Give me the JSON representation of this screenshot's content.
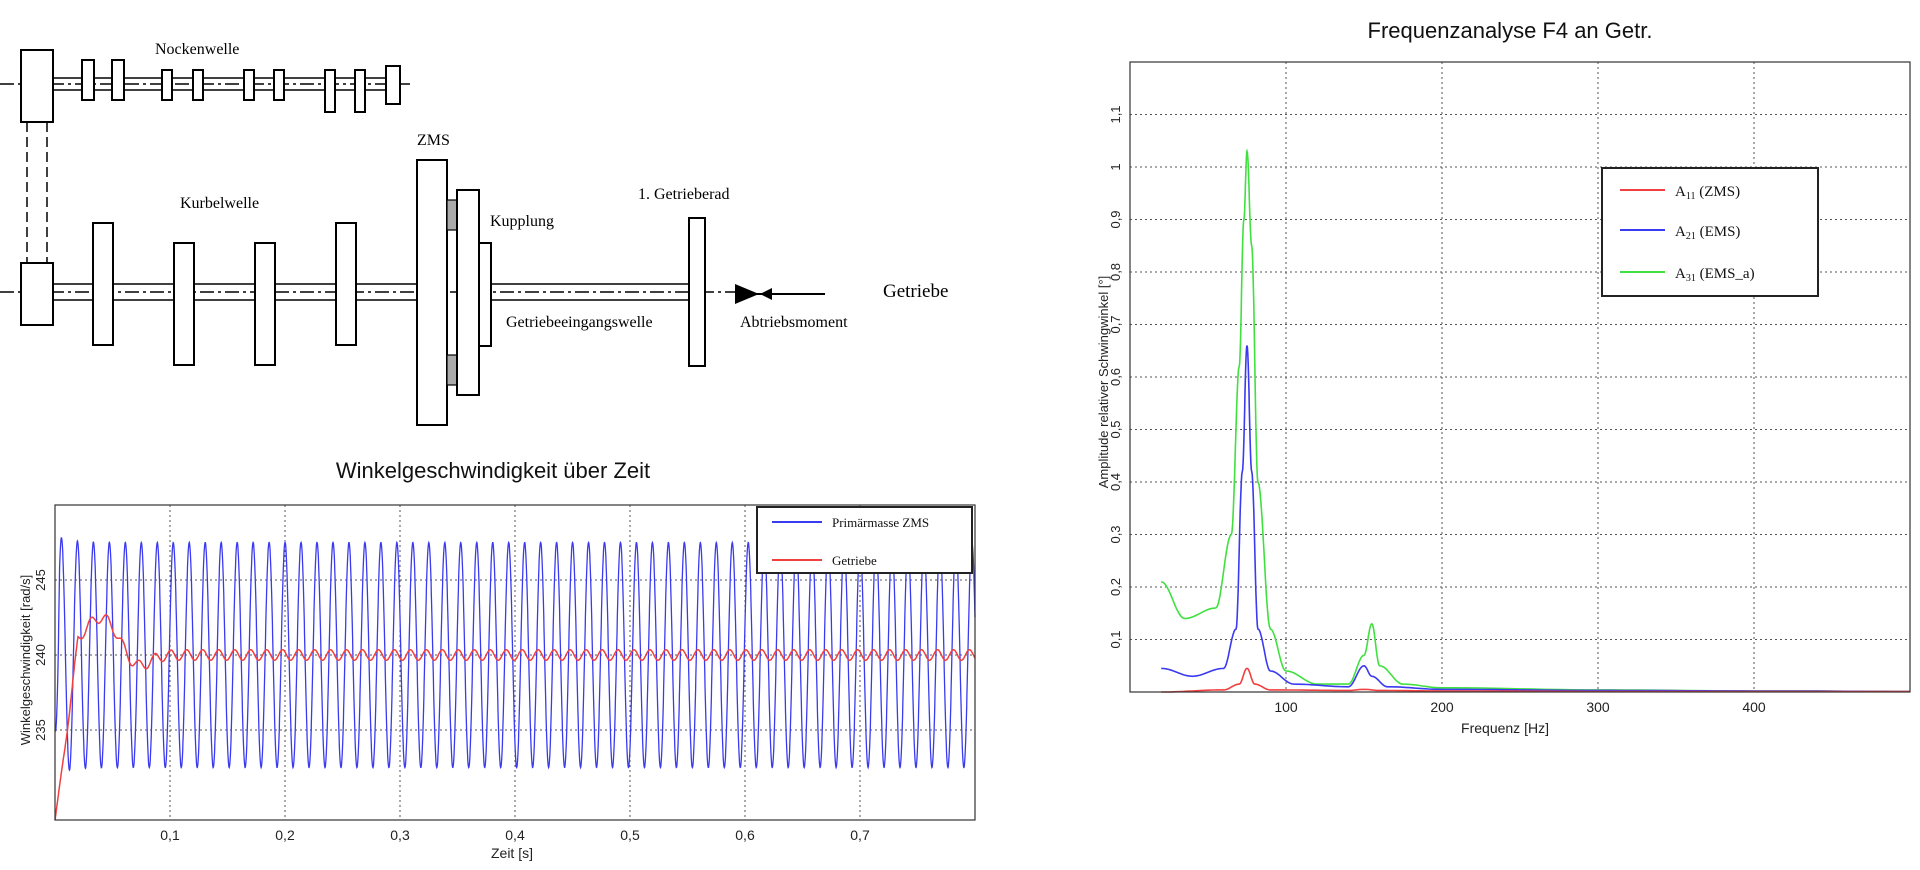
{
  "diagram": {
    "labels": {
      "nockenwelle": "Nockenwelle",
      "kurbelwelle": "Kurbelwelle",
      "zms": "ZMS",
      "kupplung": "Kupplung",
      "getrieberad": "1. Getrieberad",
      "getriebe": "Getriebe",
      "getriebeeingangswelle": "Getriebeeingangswelle",
      "abtriebsmoment": "Abtriebsmoment"
    }
  },
  "chart_data": [
    {
      "type": "line",
      "title": "Winkelgeschwindigkeit über Zeit",
      "xlabel": "Zeit [s]",
      "ylabel": "Winkelgeschwindigkeit [rad/s]",
      "xlim": [
        0,
        0.8
      ],
      "ylim": [
        229,
        250
      ],
      "xticks": [
        0.1,
        0.2,
        0.3,
        0.4,
        0.5,
        0.6,
        0.7
      ],
      "xtick_labels": [
        "0,1",
        "0,2",
        "0,3",
        "0,4",
        "0,5",
        "0,6",
        "0,7"
      ],
      "yticks": [
        235,
        240,
        245
      ],
      "ytick_labels": [
        "235",
        "240",
        "245"
      ],
      "grid": true,
      "legend_position": "top-right",
      "series": [
        {
          "name": "Primärmasse ZMS",
          "color": "#3a3af0",
          "shape": "oscillation",
          "start": 235,
          "center": 240,
          "amplitude": 7.5,
          "frequency_hz": 72,
          "initial_peak": 248
        },
        {
          "name": "Getriebe",
          "color": "#f04040",
          "shape": "settling",
          "start": 229,
          "center": 240,
          "overshoot_peak": 242.5,
          "ripple_amplitude": 0.35,
          "frequency_hz": 72
        }
      ]
    },
    {
      "type": "line",
      "title": "Frequenzanalyse F4 an Getr.",
      "xlabel": "Frequenz [Hz]",
      "ylabel": "Amplitude relativer Schwingwinkel [°]",
      "xlim": [
        0,
        500
      ],
      "ylim": [
        0,
        1.2
      ],
      "xticks": [
        100,
        200,
        300,
        400
      ],
      "xtick_labels": [
        "100",
        "200",
        "300",
        "400"
      ],
      "yticks": [
        0.1,
        0.2,
        0.3,
        0.4,
        0.5,
        0.6,
        0.7,
        0.8,
        0.9,
        1.0,
        1.1
      ],
      "ytick_labels": [
        "0,1",
        "0,2",
        "0,3",
        "0,4",
        "0,5",
        "0,6",
        "0,7",
        "0,8",
        "0,9",
        "1",
        "1,1"
      ],
      "grid": true,
      "legend_position": "top-right",
      "series": [
        {
          "name": "A11 (ZMS)",
          "legend_main": "A",
          "legend_sub": "11",
          "legend_suffix": " (ZMS)",
          "color": "#f04040",
          "x": [
            20,
            60,
            70,
            75,
            80,
            90,
            140,
            150,
            160,
            200,
            300,
            400,
            500
          ],
          "y": [
            0.0,
            0.004,
            0.015,
            0.045,
            0.015,
            0.004,
            0.003,
            0.005,
            0.003,
            0.002,
            0.001,
            0.001,
            0.001
          ]
        },
        {
          "name": "A21 (EMS)",
          "legend_main": "A",
          "legend_sub": "21",
          "legend_suffix": " (EMS)",
          "color": "#3a3af0",
          "x": [
            20,
            40,
            60,
            68,
            72,
            75,
            78,
            82,
            90,
            105,
            140,
            150,
            155,
            165,
            200,
            300,
            400,
            500
          ],
          "y": [
            0.045,
            0.03,
            0.045,
            0.12,
            0.42,
            0.66,
            0.42,
            0.12,
            0.04,
            0.015,
            0.01,
            0.05,
            0.03,
            0.01,
            0.005,
            0.003,
            0.002,
            0.001
          ]
        },
        {
          "name": "A31 (EMS_a)",
          "legend_main": "A",
          "legend_sub": "31",
          "legend_suffix": " (EMS_a)",
          "color": "#40e040",
          "x": [
            20,
            35,
            55,
            65,
            70,
            73,
            75,
            78,
            82,
            90,
            100,
            120,
            140,
            150,
            155,
            160,
            175,
            200,
            300,
            400,
            500
          ],
          "y": [
            0.21,
            0.14,
            0.16,
            0.3,
            0.62,
            0.9,
            1.03,
            0.85,
            0.4,
            0.12,
            0.04,
            0.015,
            0.015,
            0.07,
            0.13,
            0.05,
            0.015,
            0.008,
            0.004,
            0.002,
            0.001
          ]
        }
      ]
    }
  ]
}
